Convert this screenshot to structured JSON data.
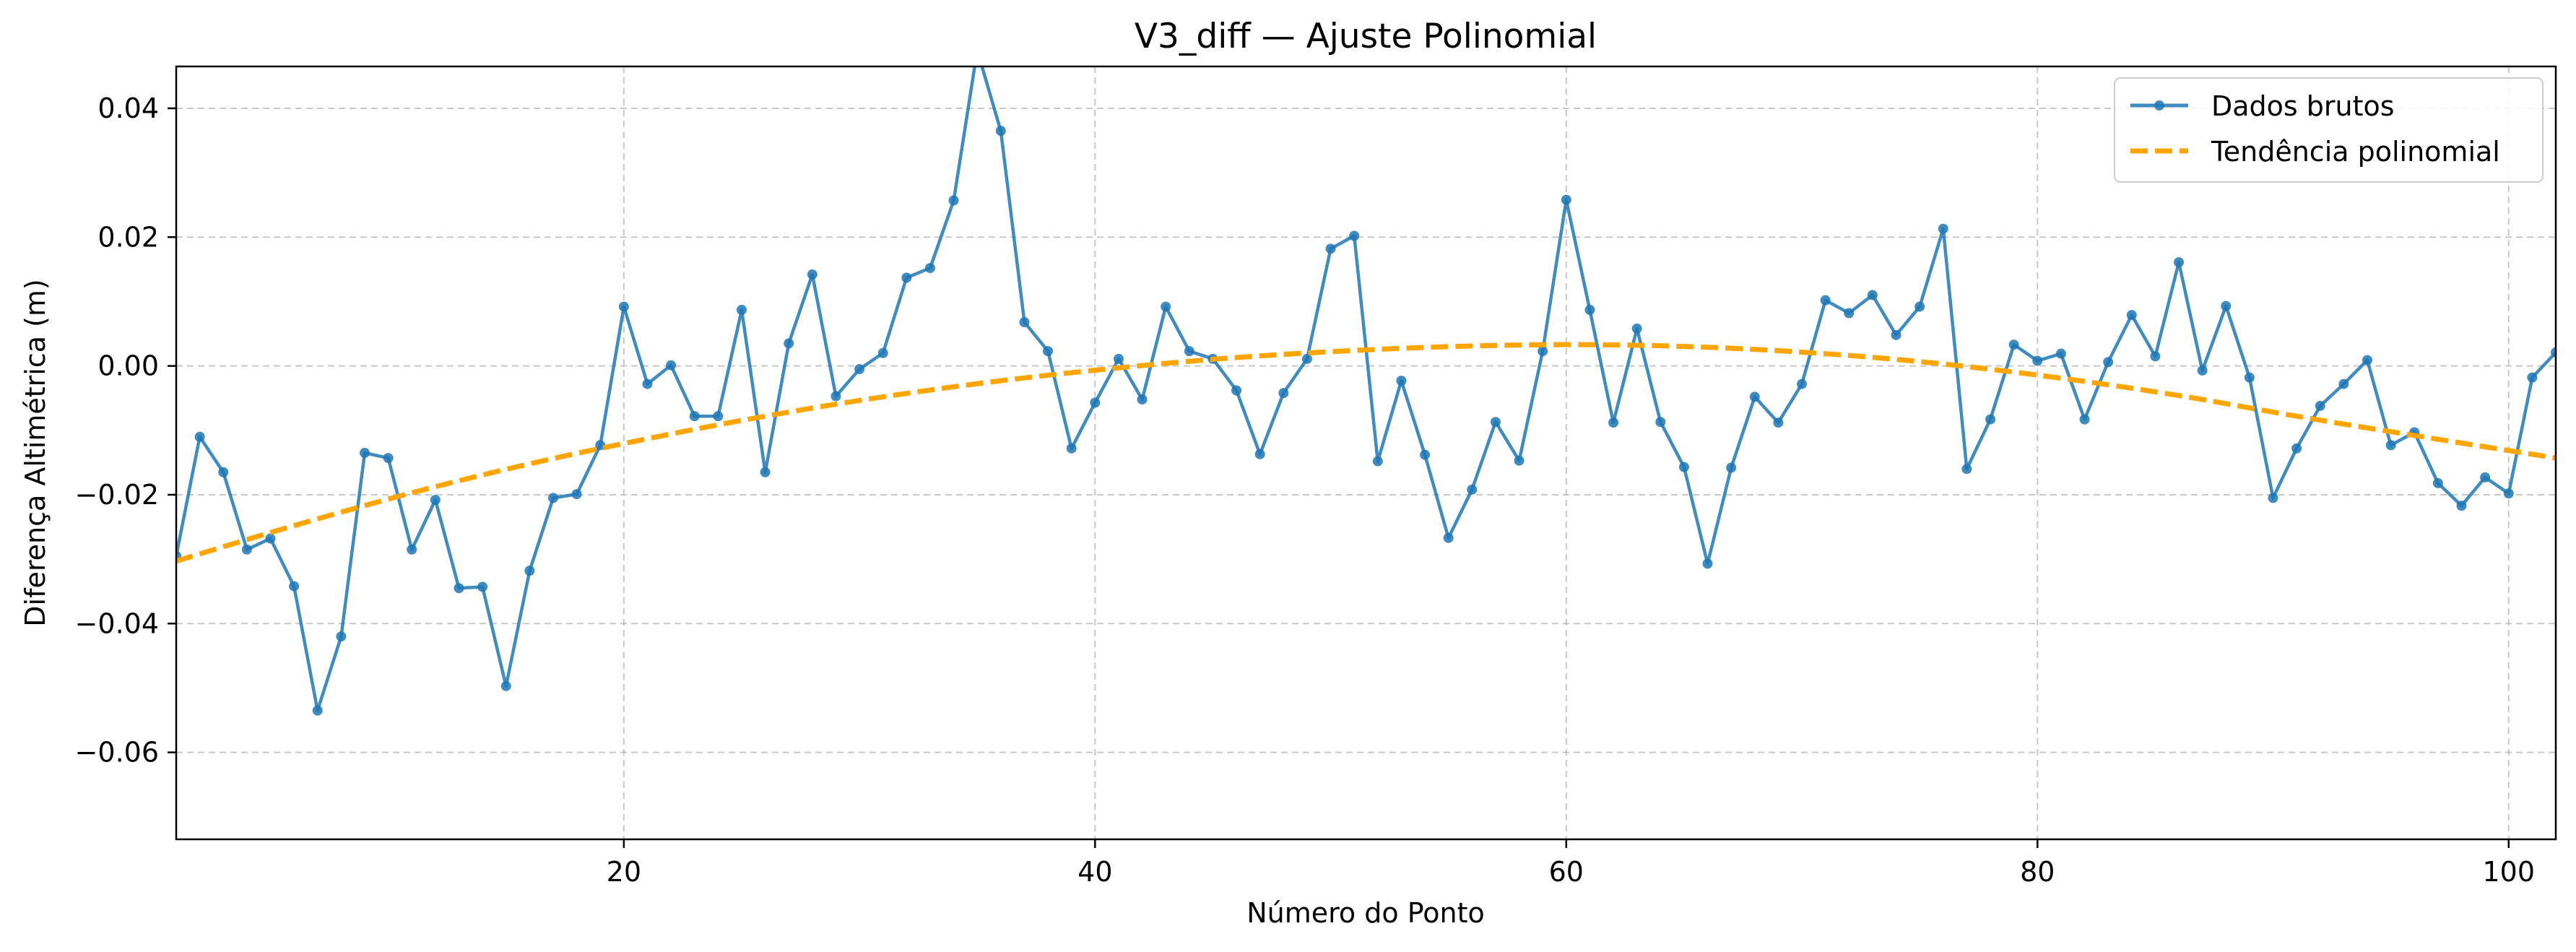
{
  "chart_data": {
    "type": "line",
    "title": "V3_diff — Ajuste Polinomial",
    "xlabel": "Número do Ponto",
    "ylabel": "Diferença Altimétrica (m)",
    "xlim": [
      1,
      102
    ],
    "ylim": [
      -0.0735,
      0.0465
    ],
    "xticks": [
      20,
      40,
      60,
      80,
      100
    ],
    "xtick_labels": [
      "20",
      "40",
      "60",
      "80",
      "100"
    ],
    "yticks": [
      0.04,
      0.02,
      0.0,
      -0.02,
      -0.04,
      -0.06
    ],
    "ytick_labels": [
      "0.04",
      "0.02",
      "0.00",
      "−0.02",
      "−0.04",
      "−0.06"
    ],
    "grid": true,
    "legend_position": "top-right",
    "colors": {
      "raw": "#1f77b4",
      "trend": "#ffa500"
    },
    "series": [
      {
        "name": "Dados brutos",
        "style": "line-with-markers",
        "x": [
          1,
          2,
          3,
          4,
          5,
          6,
          7,
          8,
          9,
          10,
          11,
          12,
          13,
          14,
          15,
          16,
          17,
          18,
          19,
          20,
          21,
          22,
          23,
          24,
          25,
          26,
          27,
          28,
          29,
          30,
          31,
          32,
          33,
          34,
          35,
          36,
          37,
          38,
          39,
          40,
          41,
          42,
          43,
          44,
          45,
          46,
          47,
          48,
          49,
          50,
          51,
          52,
          53,
          54,
          55,
          56,
          57,
          58,
          59,
          60,
          61,
          62,
          63,
          64,
          65,
          66,
          67,
          68,
          69,
          70,
          71,
          72,
          73,
          74,
          75,
          76,
          77,
          78,
          79,
          80,
          81,
          82,
          83,
          84,
          85,
          86,
          87,
          88,
          89,
          90,
          91,
          92,
          93,
          94,
          95,
          96,
          97,
          98,
          99,
          100,
          101,
          102
        ],
        "values": [
          -0.0295,
          -0.011,
          -0.0165,
          -0.0285,
          -0.0268,
          -0.0342,
          -0.0535,
          -0.042,
          -0.0135,
          -0.0143,
          -0.0285,
          -0.0208,
          -0.0345,
          -0.0343,
          -0.0497,
          -0.0318,
          -0.0205,
          -0.0199,
          -0.0123,
          0.0092,
          -0.0028,
          0.0001,
          -0.0078,
          -0.0078,
          0.0087,
          -0.0165,
          0.0035,
          0.0142,
          -0.0047,
          -0.0005,
          0.002,
          0.0137,
          0.0152,
          0.0257,
          0.049,
          0.0365,
          0.0068,
          0.0023,
          -0.0128,
          -0.0057,
          0.0011,
          -0.0052,
          0.0092,
          0.0023,
          0.0011,
          -0.0038,
          -0.0137,
          -0.0042,
          0.0011,
          0.0182,
          0.0202,
          -0.0148,
          -0.0023,
          -0.0138,
          -0.0267,
          -0.0192,
          -0.0087,
          -0.0147,
          0.0023,
          0.0258,
          0.0087,
          -0.0088,
          0.0058,
          -0.0087,
          -0.0157,
          -0.0307,
          -0.0158,
          -0.0048,
          -0.0088,
          -0.0028,
          0.0102,
          0.0082,
          0.011,
          0.0048,
          0.0092,
          0.0213,
          -0.016,
          -0.0083,
          0.0033,
          0.0008,
          0.0019,
          -0.0083,
          0.0006,
          0.0079,
          0.0015,
          0.0161,
          -0.0007,
          0.0093,
          -0.0018,
          -0.0205,
          -0.0128,
          -0.0062,
          -0.0028,
          0.0009,
          -0.0123,
          -0.0103,
          -0.0182,
          -0.0217,
          -0.0173,
          -0.0198,
          -0.0018,
          0.0021
        ]
      },
      {
        "name": "Tendência polinomial",
        "style": "dashed",
        "x": [
          1,
          6,
          11,
          16,
          21,
          26,
          31,
          36,
          41,
          46,
          51,
          56,
          61,
          66,
          71,
          76,
          81,
          86,
          91,
          96,
          102
        ],
        "values": [
          -0.0303,
          -0.0248,
          -0.0197,
          -0.0152,
          -0.0113,
          -0.0078,
          -0.0048,
          -0.0023,
          -0.0003,
          0.0013,
          0.0024,
          0.0031,
          0.0033,
          0.0029,
          0.0019,
          0.0003,
          -0.0019,
          -0.0046,
          -0.0078,
          -0.0108,
          -0.0143
        ]
      }
    ]
  }
}
